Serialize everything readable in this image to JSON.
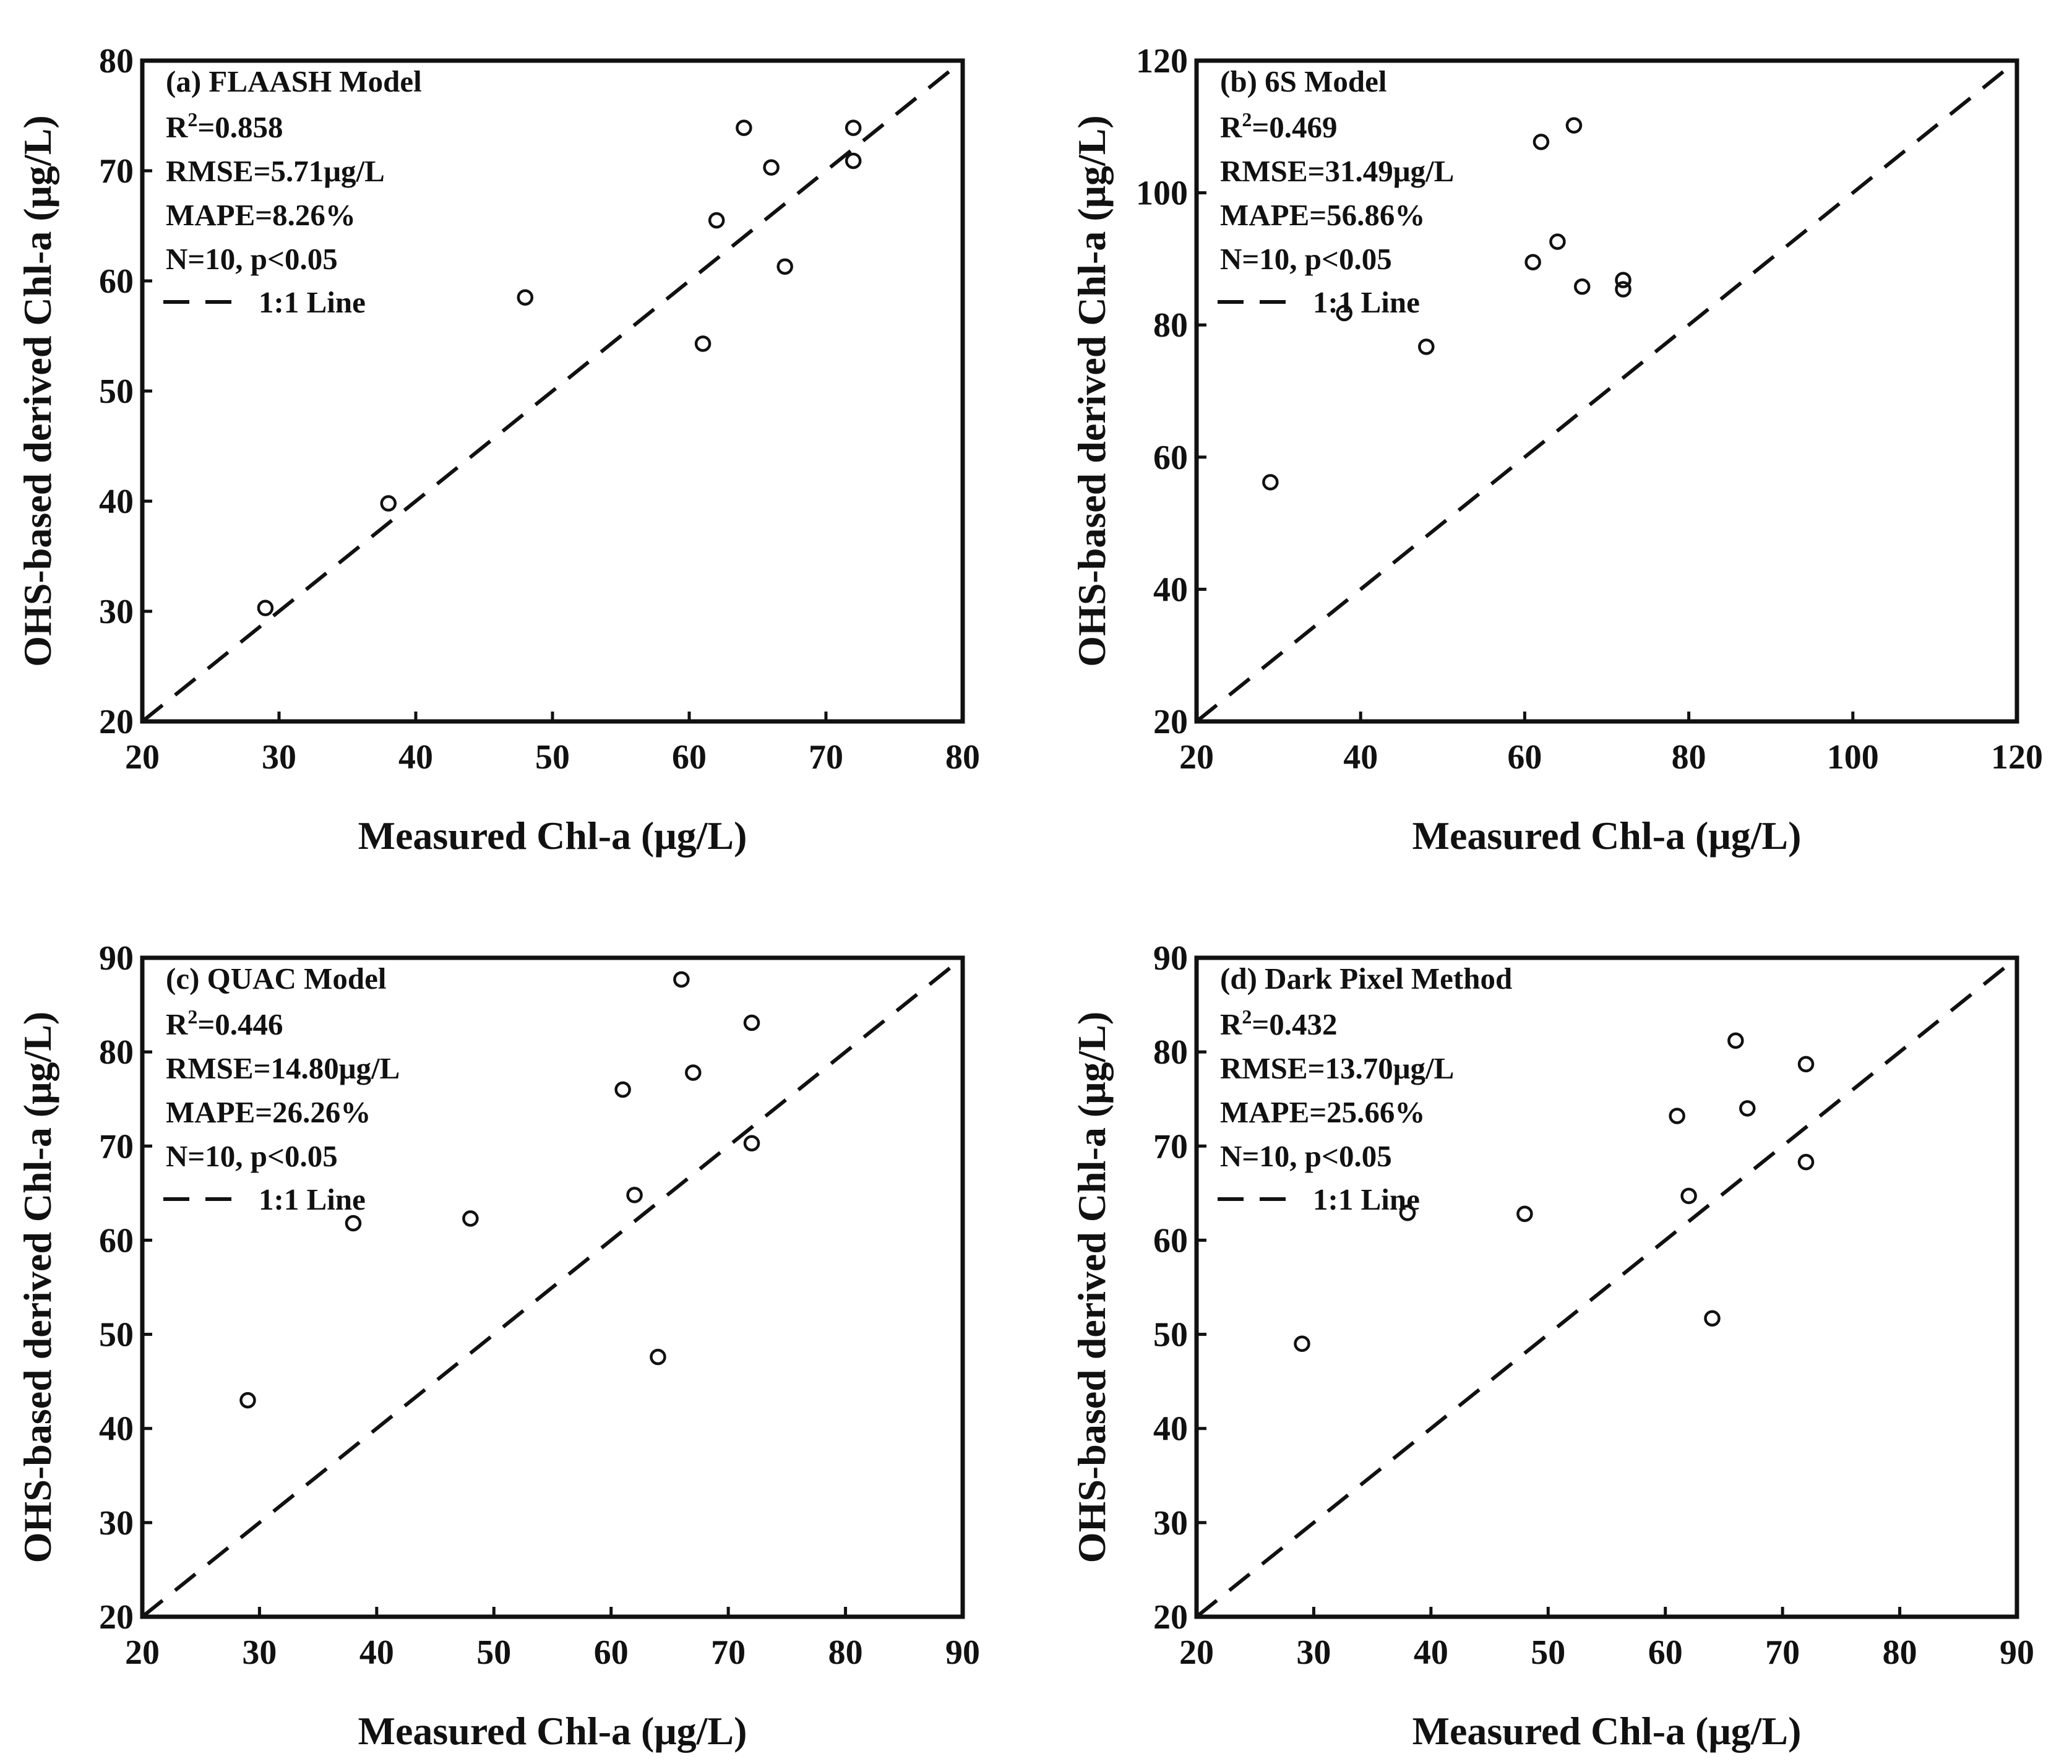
{
  "chart_data": [
    {
      "type": "scatter",
      "panel_title": "(a) FLAASH Model",
      "stats": [
        "R²=0.858",
        "RMSE=5.71μg/L",
        "MAPE=8.26%",
        "N=10, p<0.05"
      ],
      "legend_label": "1:1 Line",
      "xlabel": "Measured Chl-a (μg/L)",
      "ylabel": "OHS-based derived Chl-a (μg/L)",
      "xlim": [
        20,
        80
      ],
      "ylim": [
        20,
        80
      ],
      "xticks": [
        20,
        30,
        40,
        50,
        60,
        70,
        80
      ],
      "yticks": [
        20,
        30,
        40,
        50,
        60,
        70,
        80
      ],
      "points": [
        [
          29,
          30.3
        ],
        [
          38,
          39.8
        ],
        [
          48,
          58.5
        ],
        [
          61,
          54.3
        ],
        [
          62,
          65.5
        ],
        [
          64,
          73.9
        ],
        [
          66,
          70.3
        ],
        [
          67,
          61.3
        ],
        [
          72,
          73.9
        ],
        [
          72,
          70.9
        ]
      ]
    },
    {
      "type": "scatter",
      "panel_title": "(b) 6S Model",
      "stats": [
        "R²=0.469",
        "RMSE=31.49μg/L",
        "MAPE=56.86%",
        "N=10, p<0.05"
      ],
      "legend_label": "1:1 Line",
      "xlabel": "Measured Chl-a (μg/L)",
      "ylabel": "OHS-based derived Chl-a (μg/L)",
      "xlim": [
        20,
        120
      ],
      "ylim": [
        20,
        120
      ],
      "xticks": [
        20,
        40,
        60,
        80,
        100,
        120
      ],
      "yticks": [
        20,
        40,
        60,
        80,
        100,
        120
      ],
      "points": [
        [
          29,
          56.2
        ],
        [
          38,
          81.8
        ],
        [
          48,
          76.7
        ],
        [
          61,
          89.5
        ],
        [
          62,
          107.7
        ],
        [
          64,
          92.6
        ],
        [
          66,
          110.2
        ],
        [
          67,
          85.8
        ],
        [
          72,
          86.8
        ],
        [
          72,
          85.4
        ]
      ]
    },
    {
      "type": "scatter",
      "panel_title": "(c) QUAC Model",
      "stats": [
        "R²=0.446",
        "RMSE=14.80μg/L",
        "MAPE=26.26%",
        "N=10, p<0.05"
      ],
      "legend_label": "1:1 Line",
      "xlabel": "Measured Chl-a (μg/L)",
      "ylabel": "OHS-based derived Chl-a (μg/L)",
      "xlim": [
        20,
        90
      ],
      "ylim": [
        20,
        90
      ],
      "xticks": [
        20,
        30,
        40,
        50,
        60,
        70,
        80,
        90
      ],
      "yticks": [
        20,
        30,
        40,
        50,
        60,
        70,
        80,
        90
      ],
      "points": [
        [
          29,
          43.0
        ],
        [
          38,
          61.8
        ],
        [
          48,
          62.3
        ],
        [
          61,
          76.0
        ],
        [
          62,
          64.8
        ],
        [
          64,
          47.6
        ],
        [
          66,
          87.7
        ],
        [
          67,
          77.8
        ],
        [
          72,
          83.1
        ],
        [
          72,
          70.3
        ]
      ]
    },
    {
      "type": "scatter",
      "panel_title": "(d) Dark Pixel Method",
      "stats": [
        "R²=0.432",
        "RMSE=13.70μg/L",
        "MAPE=25.66%",
        "N=10, p<0.05"
      ],
      "legend_label": "1:1 Line",
      "xlabel": "Measured Chl-a (μg/L)",
      "ylabel": "OHS-based derived Chl-a (μg/L)",
      "xlim": [
        20,
        90
      ],
      "ylim": [
        20,
        90
      ],
      "xticks": [
        20,
        30,
        40,
        50,
        60,
        70,
        80,
        90
      ],
      "yticks": [
        20,
        30,
        40,
        50,
        60,
        70,
        80,
        90
      ],
      "points": [
        [
          29,
          49.0
        ],
        [
          38,
          62.9
        ],
        [
          48,
          62.8
        ],
        [
          61,
          73.2
        ],
        [
          62,
          64.7
        ],
        [
          64,
          51.7
        ],
        [
          66,
          81.2
        ],
        [
          67,
          74.0
        ],
        [
          72,
          78.7
        ],
        [
          72,
          68.3
        ]
      ]
    }
  ]
}
